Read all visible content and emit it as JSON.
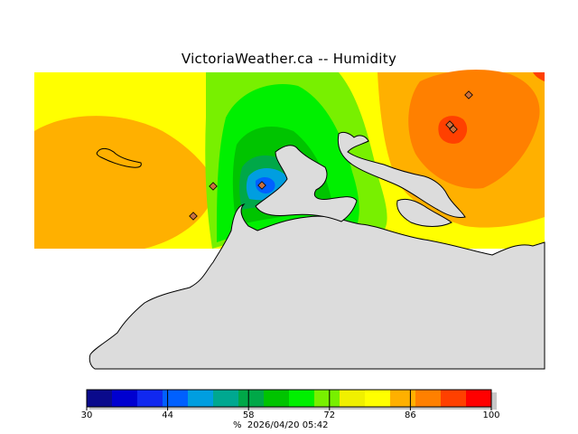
{
  "title": "VictoriaWeather.ca -- Humidity",
  "legend": {
    "unit": "%",
    "timestamp": "2026/04/20 05:42",
    "min": 30,
    "max": 100,
    "ticks": [
      "30",
      "44",
      "58",
      "72",
      "86",
      "100"
    ],
    "colors": [
      "#0a0a8c",
      "#0000d0",
      "#1028f0",
      "#0060ff",
      "#009ee0",
      "#00a890",
      "#00a848",
      "#00c400",
      "#00f000",
      "#78f000",
      "#f0f000",
      "#ffff00",
      "#ffb000",
      "#ff8000",
      "#ff4000",
      "#ff0000"
    ]
  },
  "map_colors": {
    "land": "#dcdcdc",
    "shoreline": "#000000",
    "station_marker": "#c87040"
  }
}
